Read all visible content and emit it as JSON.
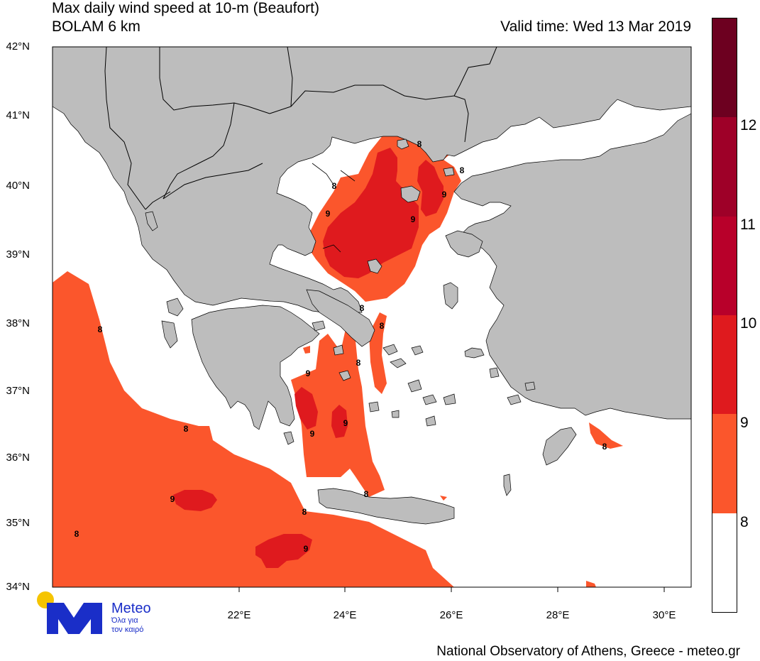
{
  "header": {
    "title": "Max daily wind speed at 10-m (Beaufort)",
    "model": "BOLAM 6 km",
    "valid_time": "Valid time: Wed 13 Mar 2019"
  },
  "map": {
    "region": "Greece",
    "latitude_labels": [
      "42°N",
      "41°N",
      "40°N",
      "39°N",
      "38°N",
      "37°N",
      "36°N",
      "35°N",
      "34°N"
    ],
    "longitude_labels": [
      "22°E",
      "24°E",
      "26°E",
      "28°E",
      "30°E"
    ],
    "colors": {
      "land": "#bdbdbd",
      "sea": "#ffffff",
      "border": "#000000"
    },
    "contour_labels": [
      "8",
      "8",
      "8",
      "8",
      "8",
      "8",
      "8",
      "8",
      "8",
      "8",
      "8",
      "8",
      "9",
      "9",
      "9",
      "9",
      "9",
      "9",
      "9",
      "9"
    ]
  },
  "colorbar": {
    "levels": [
      "8",
      "9",
      "10",
      "11",
      "12"
    ],
    "colors": [
      "#ffffff",
      "#fb562c",
      "#df1a1e",
      "#b8002a",
      "#9e0028",
      "#6d0020"
    ]
  },
  "branding": {
    "logo_name": "Meteo",
    "logo_tagline_1": "Όλα για",
    "logo_tagline_2": "τον καιρό",
    "credit": "National Observatory of Athens, Greece - meteo.gr",
    "logo_colors": {
      "sun": "#f5c400",
      "mark": "#1a2ec8"
    }
  }
}
